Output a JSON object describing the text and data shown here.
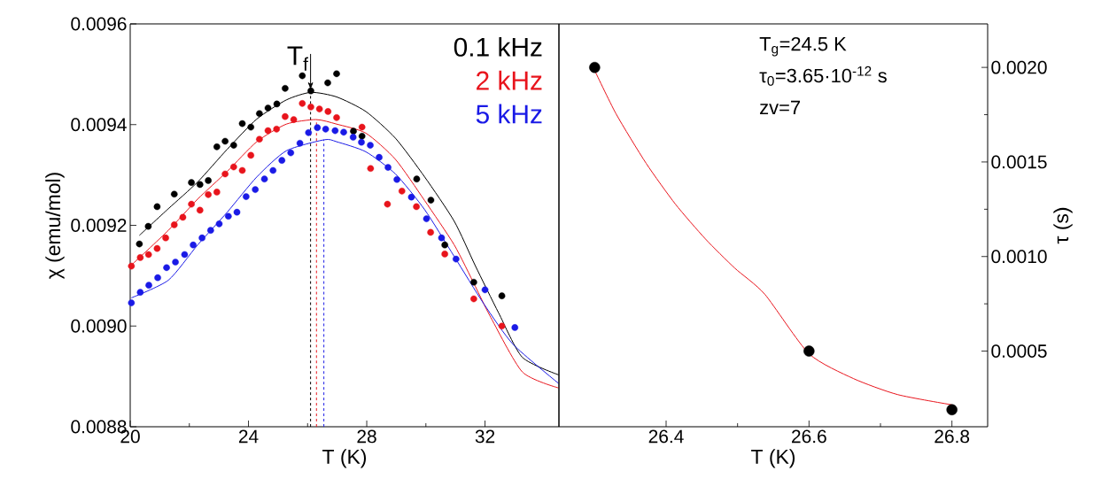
{
  "chart_data": [
    {
      "type": "scatter",
      "xlabel": "T (K)",
      "ylabel": "χ (emu/mol)",
      "xlim": [
        20,
        34.5
      ],
      "xticks": [
        20,
        24,
        28,
        32
      ],
      "ylim": [
        0.0088,
        0.0096
      ],
      "yticks": [
        0.0088,
        {
          "value": 0.009,
          "label": "0.0090"
        },
        0.0092,
        0.0094,
        0.0096
      ],
      "legend": "top right",
      "series": [
        {
          "name": "0.1 kHz",
          "marker": "circle",
          "color": "#000000",
          "x": [
            20.31,
            20.61,
            20.91,
            21.49,
            22.07,
            22.36,
            22.64,
            22.93,
            23.21,
            23.5,
            23.79,
            24.08,
            24.37,
            24.66,
            24.96,
            25.24,
            25.82,
            26.11,
            26.68,
            26.98,
            27.55,
            27.84,
            29.69,
            30.17,
            30.64,
            31.62,
            32.57
          ],
          "values": [
            0.009163,
            0.009198,
            0.009237,
            0.009262,
            0.009285,
            0.009281,
            0.009289,
            0.009356,
            0.009367,
            0.009359,
            0.009402,
            0.009395,
            0.009422,
            0.009433,
            0.009441,
            0.009472,
            0.009497,
            0.009467,
            0.009483,
            0.009501,
            0.009387,
            0.009377,
            0.009292,
            0.00925,
            0.009161,
            0.009087,
            0.00906
          ]
        },
        {
          "name": "2 kHz",
          "marker": "circle",
          "color": "#e8141c",
          "x": [
            20.04,
            20.34,
            20.62,
            20.91,
            21.2,
            21.49,
            21.78,
            22.07,
            22.36,
            22.64,
            22.93,
            23.21,
            23.5,
            23.79,
            24.08,
            24.37,
            24.66,
            24.95,
            25.24,
            25.53,
            25.82,
            26.11,
            26.4,
            26.69,
            26.98,
            27.25,
            27.84,
            28.13,
            28.7,
            29.19,
            29.68,
            30.16,
            30.64,
            31.62,
            32.57
          ],
          "values": [
            0.009119,
            0.009136,
            0.009142,
            0.009154,
            0.009175,
            0.009201,
            0.009216,
            0.009242,
            0.00923,
            0.009261,
            0.009266,
            0.009302,
            0.009316,
            0.009309,
            0.009339,
            0.009371,
            0.009388,
            0.009391,
            0.009416,
            0.00941,
            0.009442,
            0.009435,
            0.009431,
            0.009426,
            0.009414,
            null,
            0.009395,
            0.009313,
            0.009242,
            0.009268,
            0.009237,
            0.009186,
            0.009143,
            0.009054,
            0.009
          ]
        },
        {
          "name": "5 kHz",
          "marker": "circle",
          "color": "#1a1ae6",
          "x": [
            20.04,
            20.34,
            20.63,
            20.93,
            21.23,
            21.53,
            21.84,
            22.13,
            22.43,
            22.72,
            23.01,
            23.32,
            23.61,
            23.92,
            24.23,
            24.54,
            24.83,
            25.13,
            25.43,
            25.74,
            26.03,
            26.33,
            26.61,
            26.93,
            27.22,
            27.54,
            27.82,
            28.12,
            28.42,
            28.72,
            29.02,
            29.51,
            30.02,
            30.53,
            31.02,
            32.0,
            33.01
          ],
          "values": [
            0.009046,
            0.009067,
            0.009081,
            0.009096,
            0.009116,
            0.009127,
            0.009142,
            0.009161,
            0.009175,
            0.00919,
            0.009203,
            0.009218,
            0.009226,
            0.009257,
            0.009271,
            0.009292,
            0.009309,
            0.009329,
            0.009344,
            0.009363,
            0.009384,
            0.009394,
            0.009391,
            0.009388,
            0.009385,
            0.009375,
            0.009365,
            0.009359,
            0.009335,
            0.009315,
            0.009291,
            0.009256,
            0.009213,
            0.009175,
            0.009133,
            0.009072,
            0.008997
          ]
        },
        {
          "type": "line",
          "marker": "none",
          "color": "#000000",
          "x": [
            20.31,
            21.29,
            22.28,
            23.28,
            24.28,
            25.28,
            26.11,
            26.98,
            27.97,
            28.97,
            29.96,
            30.96,
            31.67,
            32.46,
            33.26,
            34.49
          ],
          "values": [
            0.00918,
            0.009233,
            0.009286,
            0.009351,
            0.009411,
            0.009449,
            0.009464,
            0.009455,
            0.009426,
            0.009373,
            0.009296,
            0.009208,
            0.00912,
            0.009026,
            0.008938,
            0.008903
          ]
        },
        {
          "type": "line",
          "marker": "none",
          "color": "#e8141c",
          "x": [
            20.04,
            21.29,
            22.28,
            23.28,
            24.28,
            25.28,
            26.28,
            26.98,
            27.97,
            28.97,
            29.96,
            30.96,
            31.67,
            32.16,
            33.26,
            34.49
          ],
          "values": [
            0.009121,
            0.00919,
            0.009252,
            0.009307,
            0.009366,
            0.009401,
            0.00941,
            0.009401,
            0.009383,
            0.009331,
            0.009249,
            0.009161,
            0.009079,
            0.009021,
            0.008909,
            0.008877
          ]
        },
        {
          "type": "line",
          "marker": "none",
          "color": "#1a1ae6",
          "x": [
            20.04,
            21.29,
            22.28,
            23.28,
            24.28,
            25.28,
            26.57,
            26.98,
            27.97,
            28.97,
            29.96,
            30.96,
            31.96,
            32.96,
            34.49
          ],
          "values": [
            0.009056,
            0.009091,
            0.009161,
            0.009226,
            0.009296,
            0.009348,
            0.00937,
            0.009366,
            0.009346,
            0.009302,
            0.009231,
            0.009138,
            0.009044,
            0.008963,
            0.008886
          ]
        }
      ],
      "ref_lines": [
        {
          "axis": "x",
          "value": 26.1,
          "color": "#000000",
          "line_style": "dashed"
        },
        {
          "axis": "x",
          "value": 26.3,
          "color": "#e8141c",
          "line_style": "dashed"
        },
        {
          "axis": "x",
          "value": 26.55,
          "color": "#1a1ae6",
          "line_style": "dashed"
        }
      ],
      "annotations": [
        {
          "text": "T$_{f}$",
          "x": 26.1,
          "y": 0.00947
        }
      ]
    },
    {
      "type": "scatter",
      "xlabel": "T (K)",
      "y2label": "τ (s)",
      "xlim": [
        26.25,
        26.85
      ],
      "xticks": [
        26.4,
        26.6,
        26.8
      ],
      "y2lim": [
        0.0001,
        0.00223
      ],
      "y2ticks": [
        0.0005,
        {
          "value": 0.001,
          "label": "0.0010"
        },
        0.0015,
        {
          "value": 0.002,
          "label": "0.0020"
        }
      ],
      "series": [
        {
          "axis": "y2",
          "marker": "circle",
          "color": "#000000",
          "x": [
            26.3,
            26.6,
            26.8
          ],
          "values": [
            0.002,
            0.0005,
            0.00019
          ]
        },
        {
          "type": "line",
          "marker": "none",
          "axis": "y2",
          "color": "#e8141c",
          "x": [
            26.299,
            26.33,
            26.372,
            26.413,
            26.455,
            26.496,
            26.538,
            26.6,
            26.662,
            26.724,
            26.8
          ],
          "values": [
            0.001992,
            0.001754,
            0.001493,
            0.001277,
            0.001093,
            0.000939,
            0.000801,
            0.000486,
            0.000355,
            0.00027,
            0.000216
          ]
        }
      ],
      "annotations": [
        "T$_{g}$=24.5 K",
        "τ$_{0}$=3.65·10$^{-12}$ s",
        "zv=7"
      ]
    }
  ]
}
